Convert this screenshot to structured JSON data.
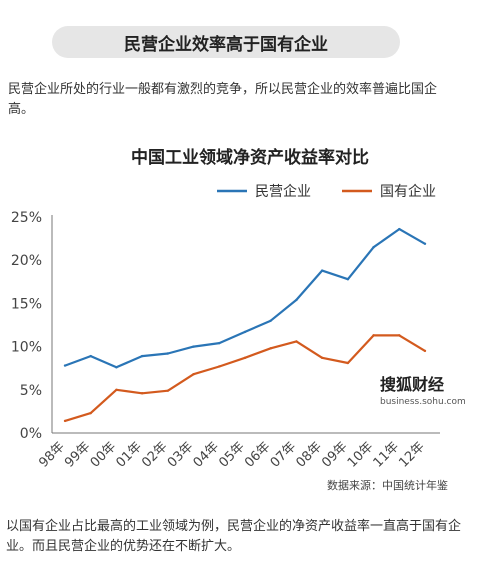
{
  "header": {
    "banner": "民营企业效率高于国有企业",
    "intro": "民营企业所处的行业一般都有激烈的竞争，所以民营企业的效率普遍比国企高。"
  },
  "chart_data": {
    "type": "line",
    "title": "中国工业领域净资产收益率对比",
    "categories": [
      "98年",
      "99年",
      "00年",
      "01年",
      "02年",
      "03年",
      "04年",
      "05年",
      "06年",
      "07年",
      "08年",
      "09年",
      "10年",
      "11年",
      "12年"
    ],
    "series": [
      {
        "name": "民营企业",
        "color": "#2a75b6",
        "values": [
          7.8,
          8.9,
          7.6,
          8.9,
          9.2,
          10.0,
          10.4,
          11.7,
          13.0,
          15.4,
          18.8,
          17.8,
          21.5,
          23.6,
          21.9
        ]
      },
      {
        "name": "国有企业",
        "color": "#d35a1e",
        "values": [
          1.4,
          2.3,
          5.0,
          4.6,
          4.9,
          6.8,
          7.7,
          8.7,
          9.8,
          10.6,
          8.7,
          8.1,
          11.3,
          11.3,
          9.5
        ]
      }
    ],
    "yticks": [
      "0%",
      "5%",
      "10%",
      "15%",
      "20%",
      "25%"
    ],
    "ylim": [
      0,
      25
    ],
    "grid": false,
    "legend": "top-right"
  },
  "watermark": {
    "main": "搜狐财经",
    "sub": "business.sohu.com"
  },
  "footer": {
    "source": "数据来源：中国统计年鉴",
    "outro": "以国有企业占比最高的工业领域为例，民营企业的净资产收益率一直高于国有企业。而且民营企业的优势还在不断扩大。"
  }
}
